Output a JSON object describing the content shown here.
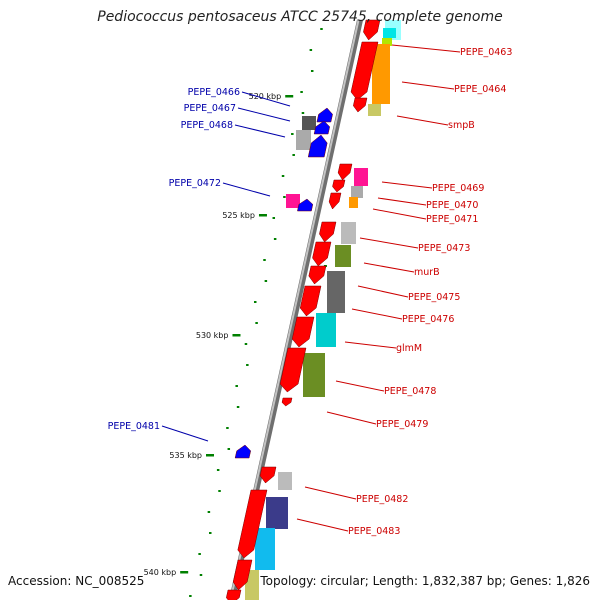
{
  "title": "Pediococcus pentosaceus ATCC 25745, complete genome",
  "accession": "Accession: NC_008525",
  "summary": "Topology: circular; Length: 1,832,387 bp; Genes: 1,826",
  "colors": {
    "backbone": "#8a8a8a",
    "forward_label": "#cc0000",
    "reverse_label": "#0000aa",
    "cds_forward": "#ff0000",
    "cds_reverse": "#0000ff",
    "tick": "#008000"
  },
  "tick_labels": [
    "520 kbp",
    "525 kbp",
    "530 kbp",
    "535 kbp",
    "540 kbp"
  ],
  "forward_genes": [
    "PEPE_0463",
    "PEPE_0464",
    "smpB",
    "PEPE_0469",
    "PEPE_0470",
    "PEPE_0471",
    "PEPE_0473",
    "murB",
    "PEPE_0475",
    "PEPE_0476",
    "glmM",
    "PEPE_0478",
    "PEPE_0479",
    "PEPE_0482",
    "PEPE_0483"
  ],
  "reverse_genes": [
    "PEPE_0466",
    "PEPE_0467",
    "PEPE_0468",
    "PEPE_0472",
    "PEPE_0481"
  ]
}
